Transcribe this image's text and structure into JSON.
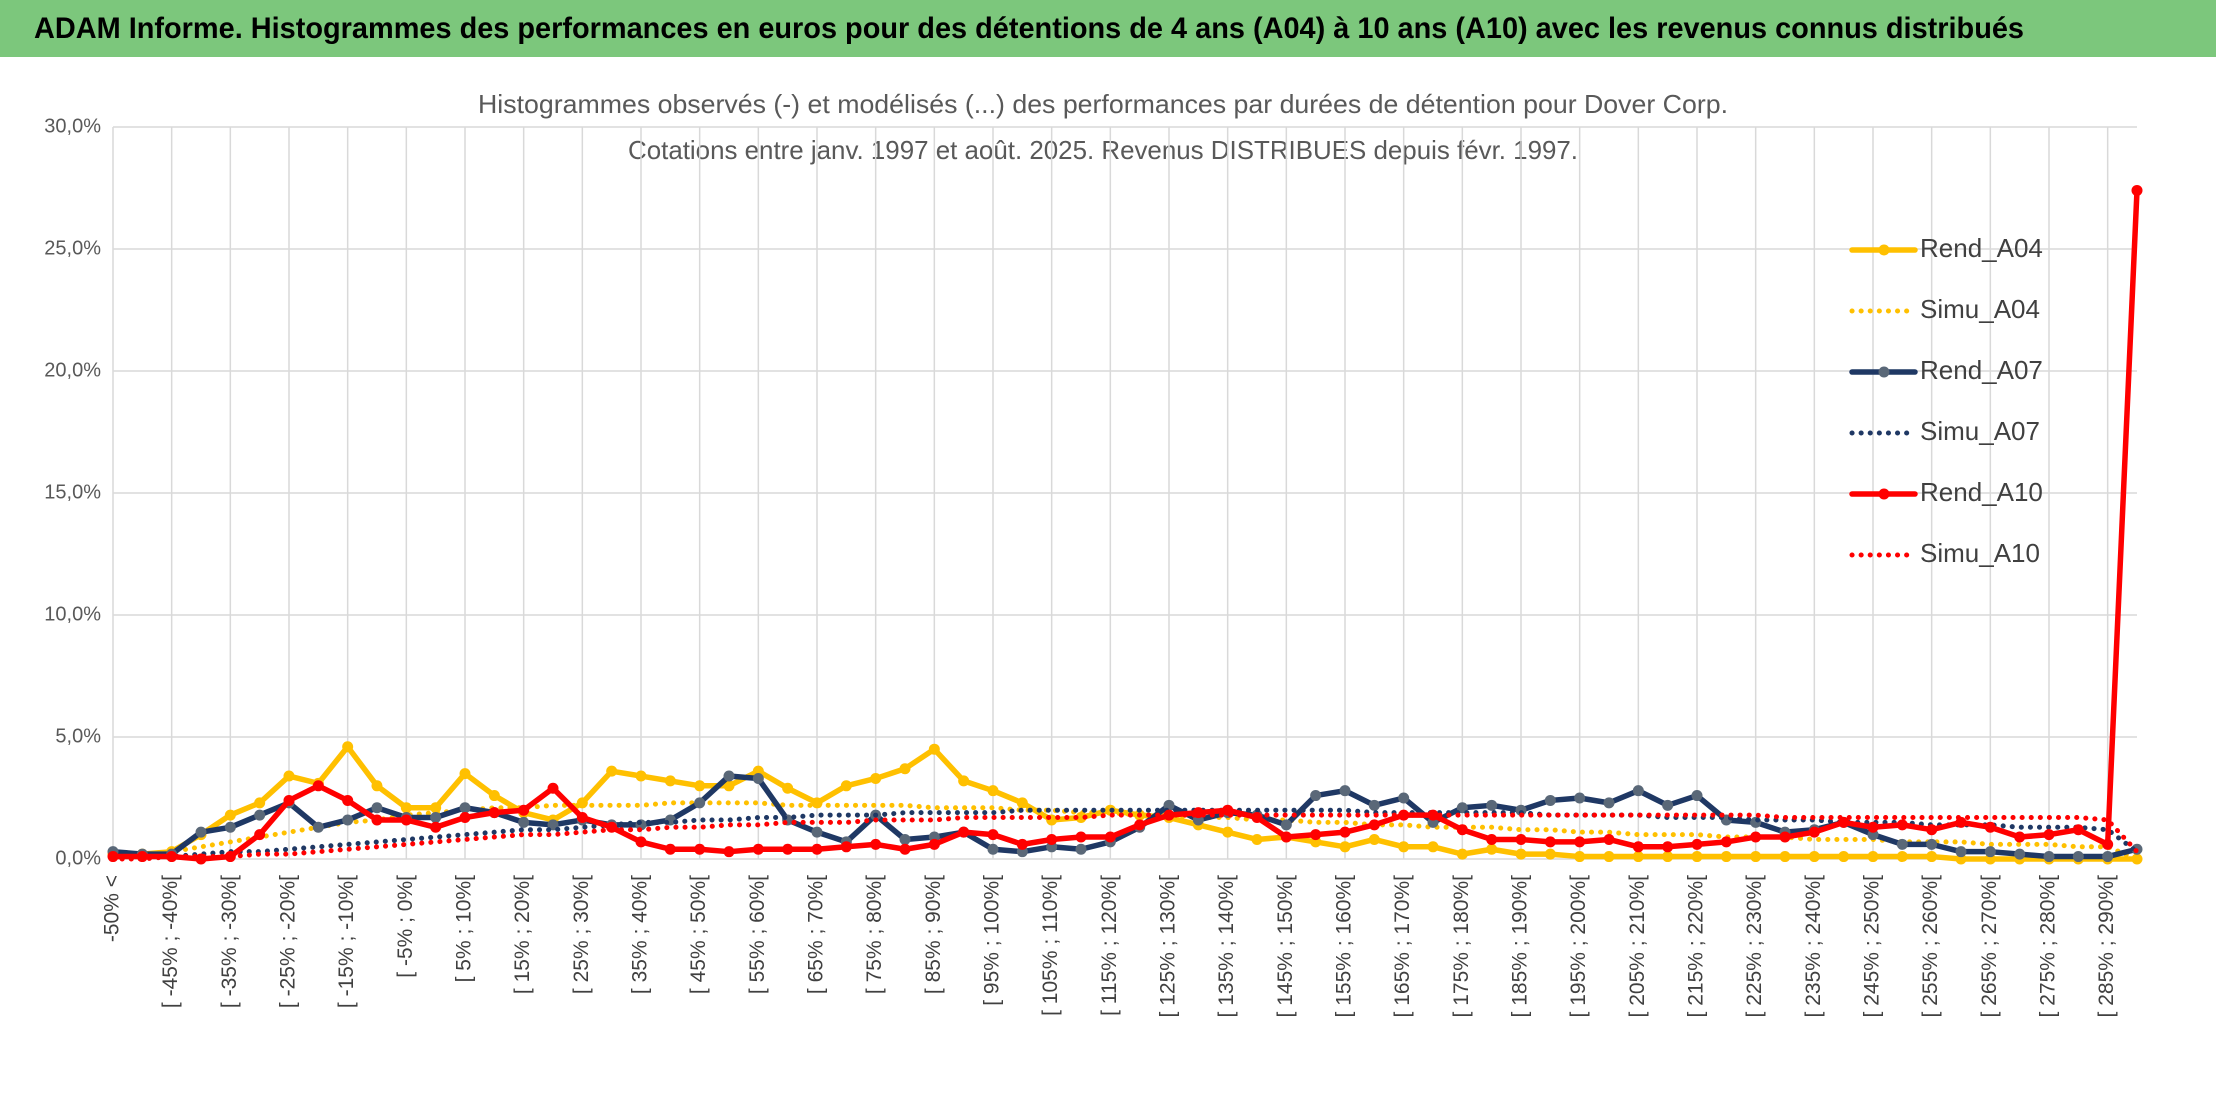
{
  "header": {
    "title": "ADAM Informe. Histogrammes des performances en euros pour des détentions de 4 ans (A04) à 10 ans (A10) avec les revenus connus distribués"
  },
  "chart_data": {
    "type": "line",
    "title": "Histogrammes observés (-) et modélisés (...) des performances par durées de détention pour Dover Corp.",
    "subtitle": "Cotations entre janv. 1997 et août. 2025. Revenus DISTRIBUES depuis févr. 1997.",
    "categories": [
      "-50% <",
      null,
      "[ -45% ; -40%[",
      null,
      "[ -35% ; -30%[",
      null,
      "[ -25% ; -20%[",
      null,
      "[ -15% ; -10%[",
      null,
      "[ -5% ; 0%[",
      null,
      "[ 5% ; 10%[",
      null,
      "[ 15% ; 20%[",
      null,
      "[ 25% ; 30%[",
      null,
      "[ 35% ; 40%[",
      null,
      "[ 45% ; 50%[",
      null,
      "[ 55% ; 60%[",
      null,
      "[ 65% ; 70%[",
      null,
      "[ 75% ; 80%[",
      null,
      "[ 85% ; 90%[",
      null,
      "[ 95% ; 100%[",
      null,
      "[ 105% ; 110%[",
      null,
      "[ 115% ; 120%[",
      null,
      "[ 125% ; 130%[",
      null,
      "[ 135% ; 140%[",
      null,
      "[ 145% ; 150%[",
      null,
      "[ 155% ; 160%[",
      null,
      "[ 165% ; 170%[",
      null,
      "[ 175% ; 180%[",
      null,
      "[ 185% ; 190%[",
      null,
      "[ 195% ; 200%[",
      null,
      "[ 205% ; 210%[",
      null,
      "[ 215% ; 220%[",
      null,
      "[ 225% ; 230%[",
      null,
      "[ 235% ; 240%[",
      null,
      "[ 245% ; 250%[",
      null,
      "[ 255% ; 260%[",
      null,
      "[ 265% ; 270%[",
      null,
      "[ 275% ; 280%[",
      null,
      "[ 285% ; 290%[",
      null
    ],
    "series": [
      {
        "name": "Rend_A04",
        "color": "#ffc000",
        "line_style": "solid",
        "markers": true,
        "values": [
          0.2,
          0.2,
          0.3,
          1.0,
          1.8,
          2.3,
          3.4,
          3.1,
          4.6,
          3.0,
          2.1,
          2.1,
          3.5,
          2.6,
          1.9,
          1.6,
          2.3,
          3.6,
          3.4,
          3.2,
          3.0,
          3.0,
          3.6,
          2.9,
          2.3,
          3.0,
          3.3,
          3.7,
          4.5,
          3.2,
          2.8,
          2.3,
          1.6,
          1.7,
          2.0,
          1.8,
          1.7,
          1.4,
          1.1,
          0.8,
          0.9,
          0.7,
          0.5,
          0.8,
          0.5,
          0.5,
          0.2,
          0.4,
          0.2,
          0.2,
          0.1,
          0.1,
          0.1,
          0.1,
          0.1,
          0.1,
          0.1,
          0.1,
          0.1,
          0.1,
          0.1,
          0.1,
          0.1,
          0.0,
          0.0,
          0.0,
          0.0,
          0.0,
          0.0,
          0.0
        ]
      },
      {
        "name": "Simu_A04",
        "color": "#ffc000",
        "line_style": "dotted",
        "markers": false,
        "values": [
          0.1,
          0.2,
          0.3,
          0.5,
          0.7,
          0.9,
          1.1,
          1.3,
          1.5,
          1.6,
          1.8,
          1.9,
          2.0,
          2.1,
          2.1,
          2.2,
          2.2,
          2.2,
          2.2,
          2.3,
          2.3,
          2.3,
          2.3,
          2.2,
          2.2,
          2.2,
          2.2,
          2.2,
          2.1,
          2.1,
          2.1,
          2.0,
          2.0,
          1.9,
          1.9,
          1.8,
          1.8,
          1.7,
          1.7,
          1.6,
          1.6,
          1.5,
          1.5,
          1.4,
          1.4,
          1.3,
          1.3,
          1.3,
          1.2,
          1.2,
          1.1,
          1.1,
          1.0,
          1.0,
          1.0,
          0.9,
          0.9,
          0.9,
          0.8,
          0.8,
          0.8,
          0.7,
          0.7,
          0.7,
          0.6,
          0.6,
          0.6,
          0.5,
          0.5,
          0.0
        ]
      },
      {
        "name": "Rend_A07",
        "color": "#1f3864",
        "marker_color": "#5a6878",
        "line_style": "solid",
        "markers": true,
        "values": [
          0.3,
          0.2,
          0.2,
          1.1,
          1.3,
          1.8,
          2.3,
          1.3,
          1.6,
          2.1,
          1.7,
          1.7,
          2.1,
          1.9,
          1.5,
          1.4,
          1.6,
          1.4,
          1.4,
          1.6,
          2.3,
          3.4,
          3.3,
          1.6,
          1.1,
          0.7,
          1.8,
          0.8,
          0.9,
          1.1,
          0.4,
          0.3,
          0.5,
          0.4,
          0.7,
          1.3,
          2.2,
          1.6,
          1.9,
          1.8,
          1.4,
          2.6,
          2.8,
          2.2,
          2.5,
          1.5,
          2.1,
          2.2,
          2.0,
          2.4,
          2.5,
          2.3,
          2.8,
          2.2,
          2.6,
          1.6,
          1.5,
          1.1,
          1.2,
          1.5,
          1.0,
          0.6,
          0.6,
          0.3,
          0.3,
          0.2,
          0.1,
          0.1,
          0.1,
          0.4
        ]
      },
      {
        "name": "Simu_A07",
        "color": "#1f3864",
        "line_style": "dotted",
        "markers": false,
        "values": [
          0.0,
          0.1,
          0.1,
          0.2,
          0.3,
          0.3,
          0.4,
          0.5,
          0.6,
          0.7,
          0.8,
          0.9,
          1.0,
          1.1,
          1.2,
          1.2,
          1.3,
          1.4,
          1.5,
          1.5,
          1.6,
          1.6,
          1.7,
          1.7,
          1.8,
          1.8,
          1.8,
          1.9,
          1.9,
          1.9,
          1.9,
          2.0,
          2.0,
          2.0,
          2.0,
          2.0,
          2.0,
          2.0,
          2.0,
          2.0,
          2.0,
          2.0,
          2.0,
          1.9,
          1.9,
          1.9,
          1.9,
          1.9,
          1.9,
          1.8,
          1.8,
          1.8,
          1.8,
          1.7,
          1.7,
          1.7,
          1.6,
          1.6,
          1.6,
          1.5,
          1.5,
          1.5,
          1.4,
          1.4,
          1.4,
          1.3,
          1.3,
          1.3,
          1.2,
          0.3
        ]
      },
      {
        "name": "Rend_A10",
        "color": "#ff0000",
        "line_style": "solid",
        "markers": true,
        "values": [
          0.1,
          0.1,
          0.1,
          0.0,
          0.1,
          1.0,
          2.4,
          3.0,
          2.4,
          1.6,
          1.6,
          1.3,
          1.7,
          1.9,
          2.0,
          2.9,
          1.7,
          1.3,
          0.7,
          0.4,
          0.4,
          0.3,
          0.4,
          0.4,
          0.4,
          0.5,
          0.6,
          0.4,
          0.6,
          1.1,
          1.0,
          0.6,
          0.8,
          0.9,
          0.9,
          1.4,
          1.8,
          1.9,
          2.0,
          1.7,
          0.9,
          1.0,
          1.1,
          1.4,
          1.8,
          1.8,
          1.2,
          0.8,
          0.8,
          0.7,
          0.7,
          0.8,
          0.5,
          0.5,
          0.6,
          0.7,
          0.9,
          0.9,
          1.1,
          1.5,
          1.3,
          1.4,
          1.2,
          1.5,
          1.3,
          0.9,
          1.0,
          1.2,
          0.6,
          27.4
        ]
      },
      {
        "name": "Simu_A10",
        "color": "#ff0000",
        "line_style": "dotted",
        "markers": false,
        "values": [
          0.0,
          0.0,
          0.1,
          0.1,
          0.1,
          0.2,
          0.2,
          0.3,
          0.4,
          0.5,
          0.6,
          0.7,
          0.8,
          0.9,
          1.0,
          1.0,
          1.1,
          1.2,
          1.2,
          1.3,
          1.3,
          1.4,
          1.4,
          1.5,
          1.5,
          1.5,
          1.6,
          1.6,
          1.6,
          1.7,
          1.7,
          1.7,
          1.7,
          1.7,
          1.8,
          1.8,
          1.8,
          1.8,
          1.8,
          1.8,
          1.8,
          1.8,
          1.8,
          1.8,
          1.8,
          1.8,
          1.8,
          1.8,
          1.8,
          1.8,
          1.8,
          1.8,
          1.8,
          1.8,
          1.8,
          1.8,
          1.8,
          1.7,
          1.7,
          1.7,
          1.7,
          1.7,
          1.7,
          1.7,
          1.7,
          1.7,
          1.7,
          1.7,
          1.6,
          0.3
        ]
      }
    ],
    "ylim": [
      0,
      30
    ],
    "yticks": [
      {
        "value": 0,
        "label": "0,0%"
      },
      {
        "value": 5,
        "label": "5,0%"
      },
      {
        "value": 10,
        "label": "10,0%"
      },
      {
        "value": 15,
        "label": "15,0%"
      },
      {
        "value": 20,
        "label": "20,0%"
      },
      {
        "value": 25,
        "label": "25,0%"
      },
      {
        "value": 30,
        "label": "30,0%"
      }
    ],
    "grid": true,
    "legend": "right"
  }
}
